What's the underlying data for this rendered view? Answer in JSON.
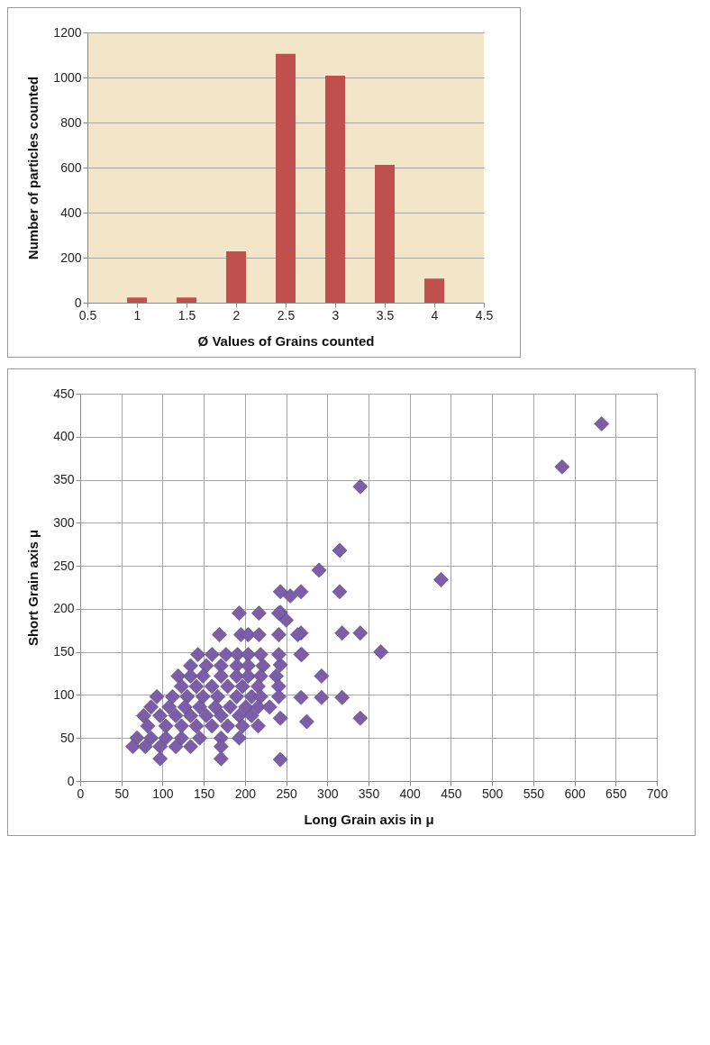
{
  "chart_data": [
    {
      "type": "bar",
      "xlabel": "Ø Values of Grains counted",
      "ylabel": "Number of particles counted",
      "x": [
        1,
        1.5,
        2,
        2.5,
        3,
        3.5,
        4
      ],
      "values": [
        23,
        23,
        228,
        1105,
        1008,
        612,
        107
      ],
      "color": "#c0504d",
      "xlim": [
        0.5,
        4.5
      ],
      "xticks": [
        0.5,
        1,
        1.5,
        2,
        2.5,
        3,
        3.5,
        4,
        4.5
      ],
      "ylim": [
        0,
        1200
      ],
      "yticks": [
        0,
        200,
        400,
        600,
        800,
        1000,
        1200
      ],
      "grid": "y"
    },
    {
      "type": "scatter",
      "xlabel": "Long Grain axis in μ",
      "ylabel": "Short Grain axis μ",
      "x": [
        633,
        585,
        340,
        438,
        315,
        290,
        315,
        340,
        318,
        365,
        340,
        318,
        293,
        293,
        268,
        243,
        275,
        243,
        268,
        243,
        268,
        255,
        250,
        268,
        243,
        243,
        193,
        217,
        241,
        169,
        195,
        204,
        217,
        241,
        264,
        143,
        160,
        177,
        191,
        204,
        219,
        241,
        269,
        134,
        153,
        171,
        190,
        204,
        222,
        119,
        134,
        149,
        171,
        190,
        204,
        219,
        238,
        123,
        141,
        160,
        179,
        197,
        216,
        241,
        93,
        112,
        130,
        149,
        167,
        190,
        208,
        219,
        241,
        86,
        108,
        127,
        145,
        164,
        182,
        201,
        216,
        230,
        77,
        97,
        116,
        134,
        153,
        171,
        193,
        208,
        82,
        104,
        123,
        141,
        160,
        179,
        197,
        216,
        69,
        86,
        104,
        123,
        145,
        171,
        193,
        64,
        79,
        97,
        116,
        134,
        171,
        97,
        171
      ],
      "values": [
        415,
        365,
        342,
        234,
        268,
        245,
        220,
        172,
        172,
        150,
        73,
        97,
        122,
        97,
        97,
        25,
        69,
        73,
        147,
        220,
        220,
        215,
        187,
        172,
        196,
        135,
        195,
        195,
        195,
        170,
        170,
        170,
        170,
        170,
        170,
        147,
        147,
        147,
        147,
        147,
        147,
        147,
        147,
        134,
        134,
        134,
        134,
        134,
        134,
        122,
        122,
        122,
        122,
        122,
        122,
        122,
        122,
        110,
        110,
        110,
        110,
        110,
        110,
        110,
        98,
        98,
        98,
        98,
        98,
        98,
        98,
        98,
        98,
        86,
        86,
        86,
        86,
        86,
        86,
        86,
        86,
        86,
        76,
        76,
        76,
        76,
        76,
        76,
        76,
        76,
        64,
        64,
        64,
        64,
        64,
        64,
        64,
        64,
        50,
        50,
        50,
        50,
        50,
        50,
        50,
        40,
        40,
        40,
        40,
        40,
        40,
        26,
        26
      ],
      "color": "#7b5ea7",
      "marker": "diamond",
      "xlim": [
        0,
        700
      ],
      "xticks": [
        0,
        50,
        100,
        150,
        200,
        250,
        300,
        350,
        400,
        450,
        500,
        550,
        600,
        650,
        700
      ],
      "ylim": [
        0,
        450
      ],
      "yticks": [
        0,
        50,
        100,
        150,
        200,
        250,
        300,
        350,
        400,
        450
      ],
      "grid": true
    }
  ]
}
